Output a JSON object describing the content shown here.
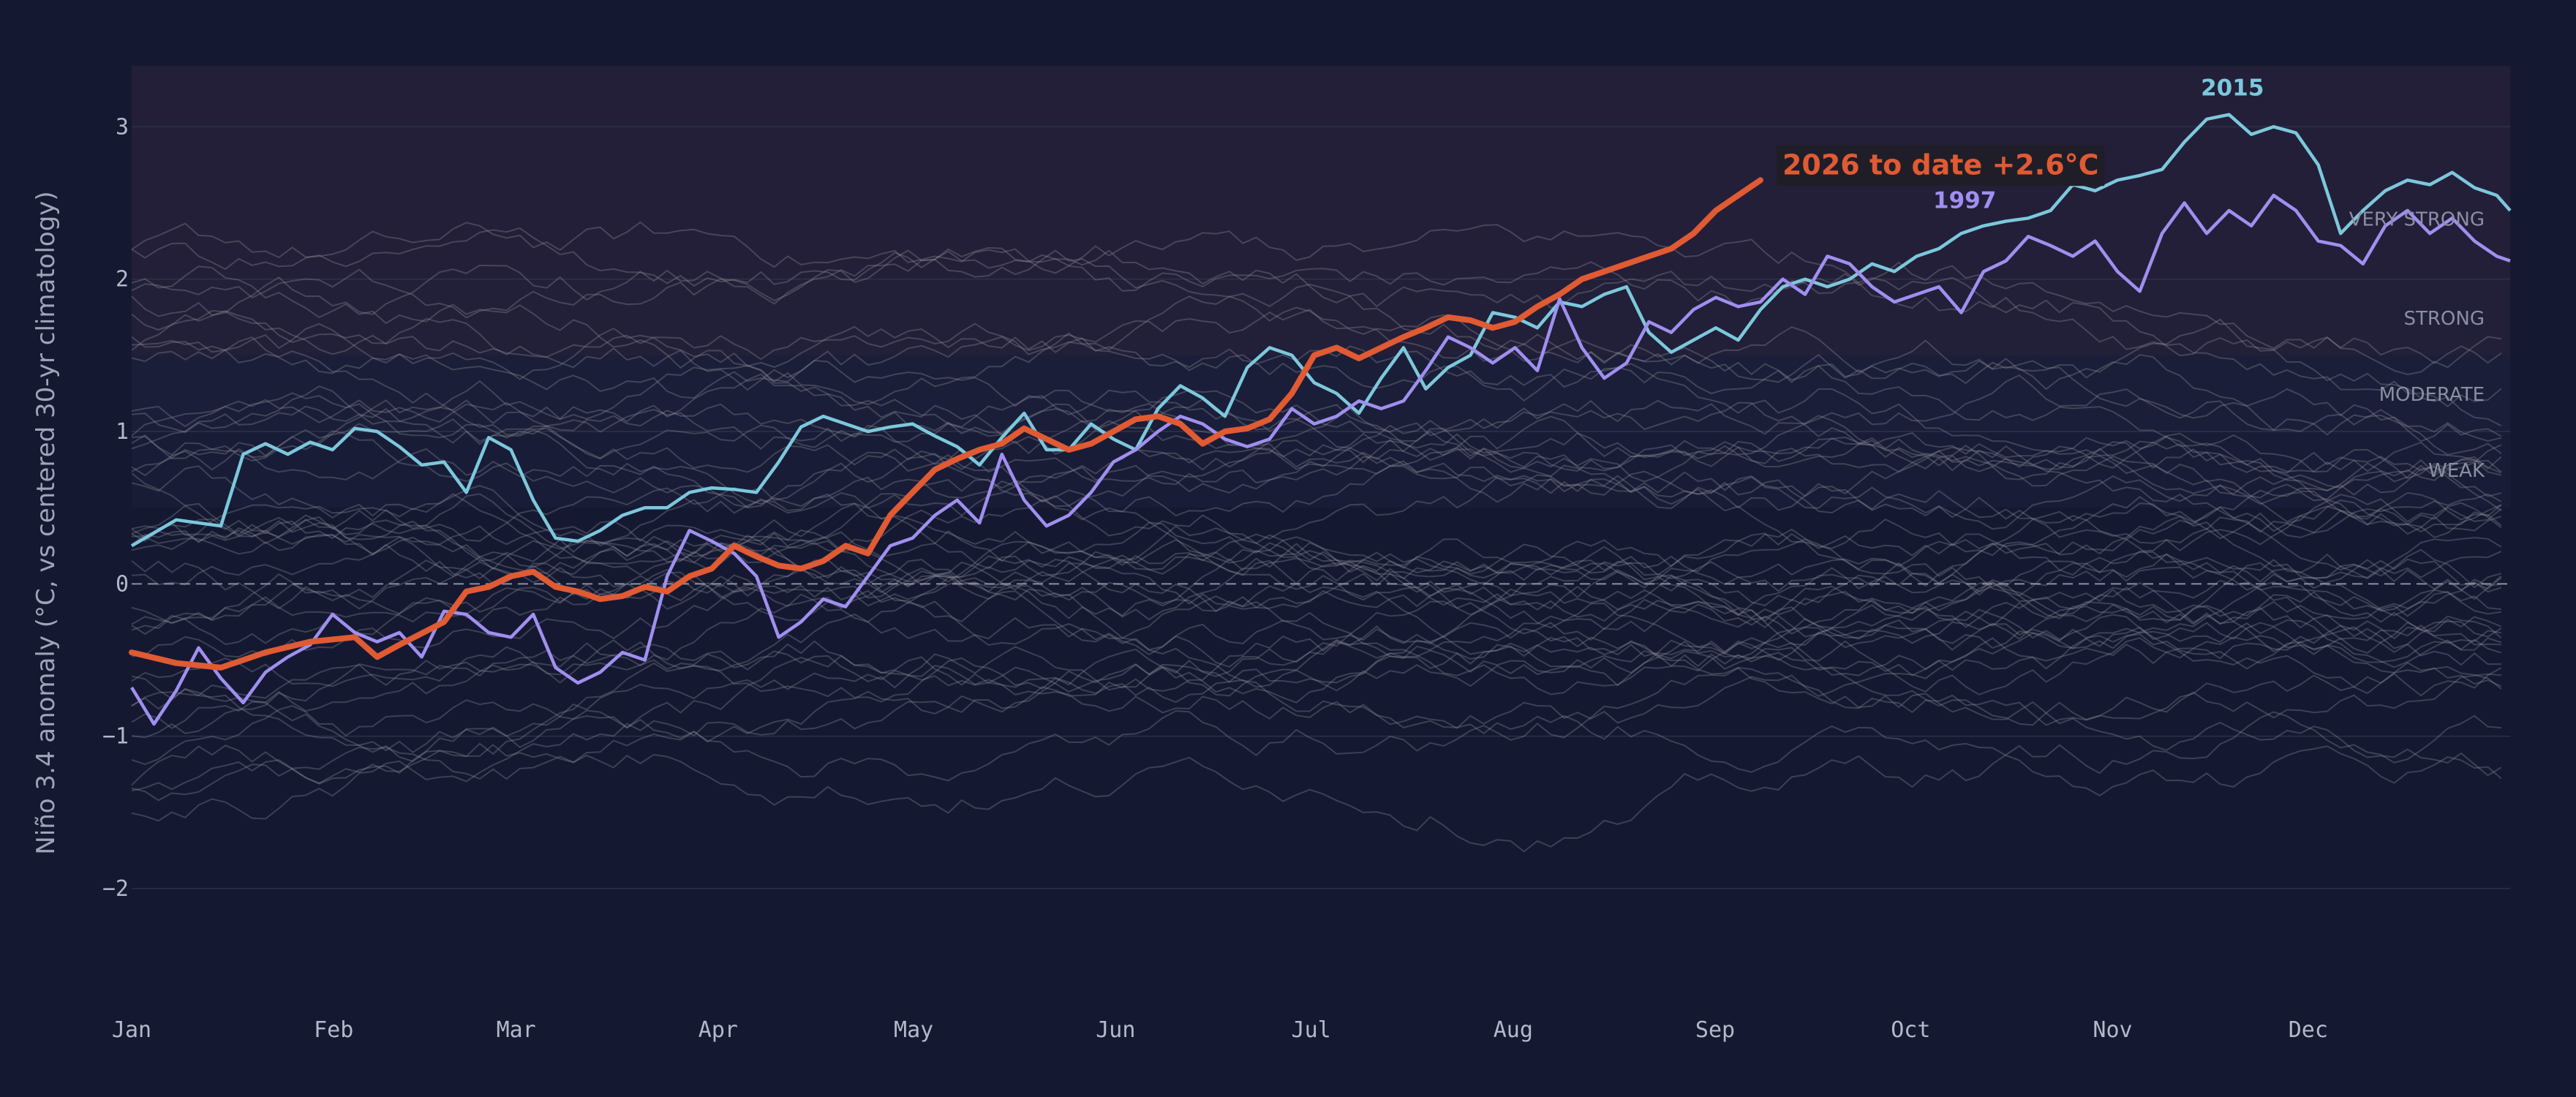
{
  "chart_data": {
    "type": "line",
    "ylabel": "Niño 3.4 anomaly (°C, vs centered 30-yr climatology)",
    "ylim": [
      -2.6,
      3.4
    ],
    "x_range": [
      "Jan 1",
      "Dec 31"
    ],
    "x_ticks": [
      "Jan",
      "Feb",
      "Mar",
      "Apr",
      "May",
      "Jun",
      "Jul",
      "Aug",
      "Sep",
      "Oct",
      "Nov",
      "Dec"
    ],
    "y_ticks": [
      {
        "value": 3,
        "label": "3"
      },
      {
        "value": 2,
        "label": "2"
      },
      {
        "value": 1,
        "label": "1"
      },
      {
        "value": 0,
        "label": "0"
      },
      {
        "value": -1,
        "label": "−1"
      },
      {
        "value": -2,
        "label": "−2"
      }
    ],
    "zero_line": "dashed",
    "bands": [
      {
        "label": "WEAK",
        "from": 0.5,
        "to": 1.0,
        "label_at": 0.75
      },
      {
        "label": "MODERATE",
        "from": 1.0,
        "to": 1.5,
        "label_at": 1.25
      },
      {
        "label": "STRONG",
        "from": 1.5,
        "to": 2.0,
        "label_at": 1.75
      },
      {
        "label": "VERY STRONG",
        "from": 2.0,
        "to": 3.4,
        "label_at": 2.4
      }
    ],
    "background_series_count": 45,
    "highlight_series": [
      {
        "name": "2015",
        "color": "#7cc8dc",
        "points": [
          [
            0,
            0.25
          ],
          [
            10,
            0.42
          ],
          [
            20,
            0.38
          ],
          [
            25,
            0.85
          ],
          [
            30,
            0.92
          ],
          [
            35,
            0.85
          ],
          [
            40,
            0.93
          ],
          [
            45,
            0.88
          ],
          [
            50,
            1.02
          ],
          [
            55,
            1.0
          ],
          [
            60,
            0.9
          ],
          [
            65,
            0.78
          ],
          [
            70,
            0.8
          ],
          [
            75,
            0.6
          ],
          [
            80,
            0.96
          ],
          [
            85,
            0.88
          ],
          [
            90,
            0.55
          ],
          [
            95,
            0.3
          ],
          [
            100,
            0.28
          ],
          [
            105,
            0.35
          ],
          [
            110,
            0.45
          ],
          [
            115,
            0.5
          ],
          [
            120,
            0.5
          ],
          [
            125,
            0.6
          ],
          [
            130,
            0.63
          ],
          [
            135,
            0.62
          ],
          [
            140,
            0.6
          ],
          [
            145,
            0.8
          ],
          [
            150,
            1.03
          ],
          [
            155,
            1.1
          ],
          [
            160,
            1.05
          ],
          [
            165,
            1.0
          ],
          [
            170,
            1.03
          ],
          [
            175,
            1.05
          ],
          [
            180,
            0.97
          ],
          [
            185,
            0.9
          ],
          [
            190,
            0.78
          ],
          [
            195,
            0.96
          ],
          [
            200,
            1.12
          ],
          [
            205,
            0.88
          ],
          [
            210,
            0.88
          ],
          [
            215,
            1.05
          ],
          [
            220,
            0.95
          ],
          [
            225,
            0.88
          ],
          [
            230,
            1.15
          ],
          [
            235,
            1.3
          ],
          [
            240,
            1.22
          ],
          [
            245,
            1.1
          ],
          [
            250,
            1.42
          ],
          [
            255,
            1.55
          ],
          [
            260,
            1.5
          ],
          [
            265,
            1.32
          ],
          [
            270,
            1.25
          ],
          [
            275,
            1.12
          ],
          [
            280,
            1.35
          ],
          [
            285,
            1.55
          ],
          [
            290,
            1.28
          ],
          [
            295,
            1.42
          ],
          [
            300,
            1.5
          ],
          [
            305,
            1.78
          ],
          [
            310,
            1.75
          ],
          [
            315,
            1.68
          ],
          [
            320,
            1.85
          ],
          [
            325,
            1.82
          ],
          [
            330,
            1.9
          ],
          [
            335,
            1.95
          ],
          [
            340,
            1.65
          ],
          [
            345,
            1.52
          ],
          [
            350,
            1.6
          ],
          [
            355,
            1.68
          ],
          [
            360,
            1.6
          ],
          [
            365,
            1.8
          ],
          [
            370,
            1.95
          ],
          [
            375,
            2.0
          ],
          [
            380,
            1.95
          ],
          [
            385,
            2.0
          ],
          [
            390,
            2.1
          ],
          [
            395,
            2.05
          ],
          [
            400,
            2.15
          ],
          [
            405,
            2.2
          ],
          [
            410,
            2.3
          ],
          [
            415,
            2.35
          ],
          [
            420,
            2.38
          ],
          [
            425,
            2.4
          ],
          [
            430,
            2.45
          ],
          [
            435,
            2.62
          ],
          [
            440,
            2.58
          ],
          [
            445,
            2.65
          ],
          [
            450,
            2.68
          ],
          [
            455,
            2.72
          ],
          [
            460,
            2.9
          ],
          [
            465,
            3.05
          ],
          [
            470,
            3.08
          ],
          [
            475,
            2.95
          ],
          [
            480,
            3.0
          ],
          [
            485,
            2.96
          ],
          [
            490,
            2.75
          ],
          [
            495,
            2.3
          ],
          [
            500,
            2.45
          ],
          [
            505,
            2.58
          ],
          [
            510,
            2.65
          ],
          [
            515,
            2.62
          ],
          [
            520,
            2.7
          ],
          [
            525,
            2.6
          ],
          [
            530,
            2.55
          ],
          [
            533,
            2.45
          ]
        ]
      },
      {
        "name": "1997",
        "color": "#a08ff0",
        "points": [
          [
            0,
            -0.68
          ],
          [
            5,
            -0.92
          ],
          [
            10,
            -0.7
          ],
          [
            15,
            -0.42
          ],
          [
            20,
            -0.62
          ],
          [
            25,
            -0.78
          ],
          [
            30,
            -0.58
          ],
          [
            35,
            -0.48
          ],
          [
            40,
            -0.4
          ],
          [
            45,
            -0.2
          ],
          [
            50,
            -0.32
          ],
          [
            55,
            -0.38
          ],
          [
            60,
            -0.32
          ],
          [
            65,
            -0.48
          ],
          [
            70,
            -0.18
          ],
          [
            75,
            -0.2
          ],
          [
            80,
            -0.32
          ],
          [
            85,
            -0.35
          ],
          [
            90,
            -0.2
          ],
          [
            95,
            -0.55
          ],
          [
            100,
            -0.65
          ],
          [
            105,
            -0.58
          ],
          [
            110,
            -0.45
          ],
          [
            115,
            -0.5
          ],
          [
            120,
            0.05
          ],
          [
            125,
            0.35
          ],
          [
            130,
            0.28
          ],
          [
            135,
            0.2
          ],
          [
            140,
            0.05
          ],
          [
            145,
            -0.35
          ],
          [
            150,
            -0.25
          ],
          [
            155,
            -0.1
          ],
          [
            160,
            -0.15
          ],
          [
            165,
            0.05
          ],
          [
            170,
            0.25
          ],
          [
            175,
            0.3
          ],
          [
            180,
            0.45
          ],
          [
            185,
            0.55
          ],
          [
            190,
            0.4
          ],
          [
            195,
            0.85
          ],
          [
            200,
            0.55
          ],
          [
            205,
            0.38
          ],
          [
            210,
            0.45
          ],
          [
            215,
            0.6
          ],
          [
            220,
            0.8
          ],
          [
            225,
            0.88
          ],
          [
            230,
            1.0
          ],
          [
            235,
            1.1
          ],
          [
            240,
            1.05
          ],
          [
            245,
            0.95
          ],
          [
            250,
            0.9
          ],
          [
            255,
            0.95
          ],
          [
            260,
            1.15
          ],
          [
            265,
            1.05
          ],
          [
            270,
            1.1
          ],
          [
            275,
            1.2
          ],
          [
            280,
            1.15
          ],
          [
            285,
            1.2
          ],
          [
            290,
            1.4
          ],
          [
            295,
            1.62
          ],
          [
            300,
            1.55
          ],
          [
            305,
            1.45
          ],
          [
            310,
            1.55
          ],
          [
            315,
            1.4
          ],
          [
            320,
            1.87
          ],
          [
            325,
            1.55
          ],
          [
            330,
            1.35
          ],
          [
            335,
            1.45
          ],
          [
            340,
            1.72
          ],
          [
            345,
            1.65
          ],
          [
            350,
            1.8
          ],
          [
            355,
            1.88
          ],
          [
            360,
            1.82
          ],
          [
            365,
            1.85
          ],
          [
            370,
            2.0
          ],
          [
            375,
            1.9
          ],
          [
            380,
            2.15
          ],
          [
            385,
            2.1
          ],
          [
            390,
            1.95
          ],
          [
            395,
            1.85
          ],
          [
            400,
            1.9
          ],
          [
            405,
            1.95
          ],
          [
            410,
            1.78
          ],
          [
            415,
            2.05
          ],
          [
            420,
            2.12
          ],
          [
            425,
            2.28
          ],
          [
            430,
            2.22
          ],
          [
            435,
            2.15
          ],
          [
            440,
            2.25
          ],
          [
            445,
            2.05
          ],
          [
            450,
            1.92
          ],
          [
            455,
            2.3
          ],
          [
            460,
            2.5
          ],
          [
            465,
            2.3
          ],
          [
            470,
            2.45
          ],
          [
            475,
            2.35
          ],
          [
            480,
            2.55
          ],
          [
            485,
            2.45
          ],
          [
            490,
            2.25
          ],
          [
            495,
            2.22
          ],
          [
            500,
            2.1
          ],
          [
            505,
            2.35
          ],
          [
            510,
            2.45
          ],
          [
            515,
            2.3
          ],
          [
            520,
            2.4
          ],
          [
            525,
            2.25
          ],
          [
            530,
            2.15
          ],
          [
            533,
            2.12
          ]
        ]
      }
    ],
    "current_series": {
      "name": "2026",
      "color": "#e05a33",
      "label": "2026 to date  +2.6°C",
      "points": [
        [
          0,
          -0.45
        ],
        [
          10,
          -0.52
        ],
        [
          20,
          -0.55
        ],
        [
          30,
          -0.45
        ],
        [
          40,
          -0.38
        ],
        [
          50,
          -0.35
        ],
        [
          55,
          -0.48
        ],
        [
          60,
          -0.4
        ],
        [
          70,
          -0.25
        ],
        [
          75,
          -0.05
        ],
        [
          80,
          -0.02
        ],
        [
          85,
          0.05
        ],
        [
          90,
          0.08
        ],
        [
          95,
          -0.02
        ],
        [
          100,
          -0.05
        ],
        [
          105,
          -0.1
        ],
        [
          110,
          -0.08
        ],
        [
          115,
          -0.02
        ],
        [
          120,
          -0.05
        ],
        [
          125,
          0.05
        ],
        [
          130,
          0.1
        ],
        [
          135,
          0.25
        ],
        [
          140,
          0.18
        ],
        [
          145,
          0.12
        ],
        [
          150,
          0.1
        ],
        [
          155,
          0.15
        ],
        [
          160,
          0.25
        ],
        [
          165,
          0.2
        ],
        [
          170,
          0.45
        ],
        [
          175,
          0.6
        ],
        [
          180,
          0.75
        ],
        [
          185,
          0.82
        ],
        [
          190,
          0.88
        ],
        [
          195,
          0.92
        ],
        [
          200,
          1.02
        ],
        [
          205,
          0.95
        ],
        [
          210,
          0.88
        ],
        [
          215,
          0.92
        ],
        [
          220,
          1.0
        ],
        [
          225,
          1.08
        ],
        [
          230,
          1.1
        ],
        [
          235,
          1.05
        ],
        [
          240,
          0.92
        ],
        [
          245,
          1.0
        ],
        [
          250,
          1.02
        ],
        [
          255,
          1.08
        ],
        [
          260,
          1.25
        ],
        [
          265,
          1.5
        ],
        [
          270,
          1.55
        ],
        [
          275,
          1.48
        ],
        [
          280,
          1.55
        ],
        [
          285,
          1.62
        ],
        [
          290,
          1.68
        ],
        [
          295,
          1.75
        ],
        [
          300,
          1.73
        ],
        [
          305,
          1.68
        ],
        [
          310,
          1.72
        ],
        [
          315,
          1.82
        ],
        [
          320,
          1.9
        ],
        [
          325,
          2.0
        ],
        [
          330,
          2.05
        ],
        [
          335,
          2.1
        ],
        [
          340,
          2.15
        ],
        [
          345,
          2.2
        ],
        [
          350,
          2.3
        ],
        [
          355,
          2.45
        ],
        [
          360,
          2.55
        ],
        [
          365,
          2.65
        ]
      ]
    }
  }
}
